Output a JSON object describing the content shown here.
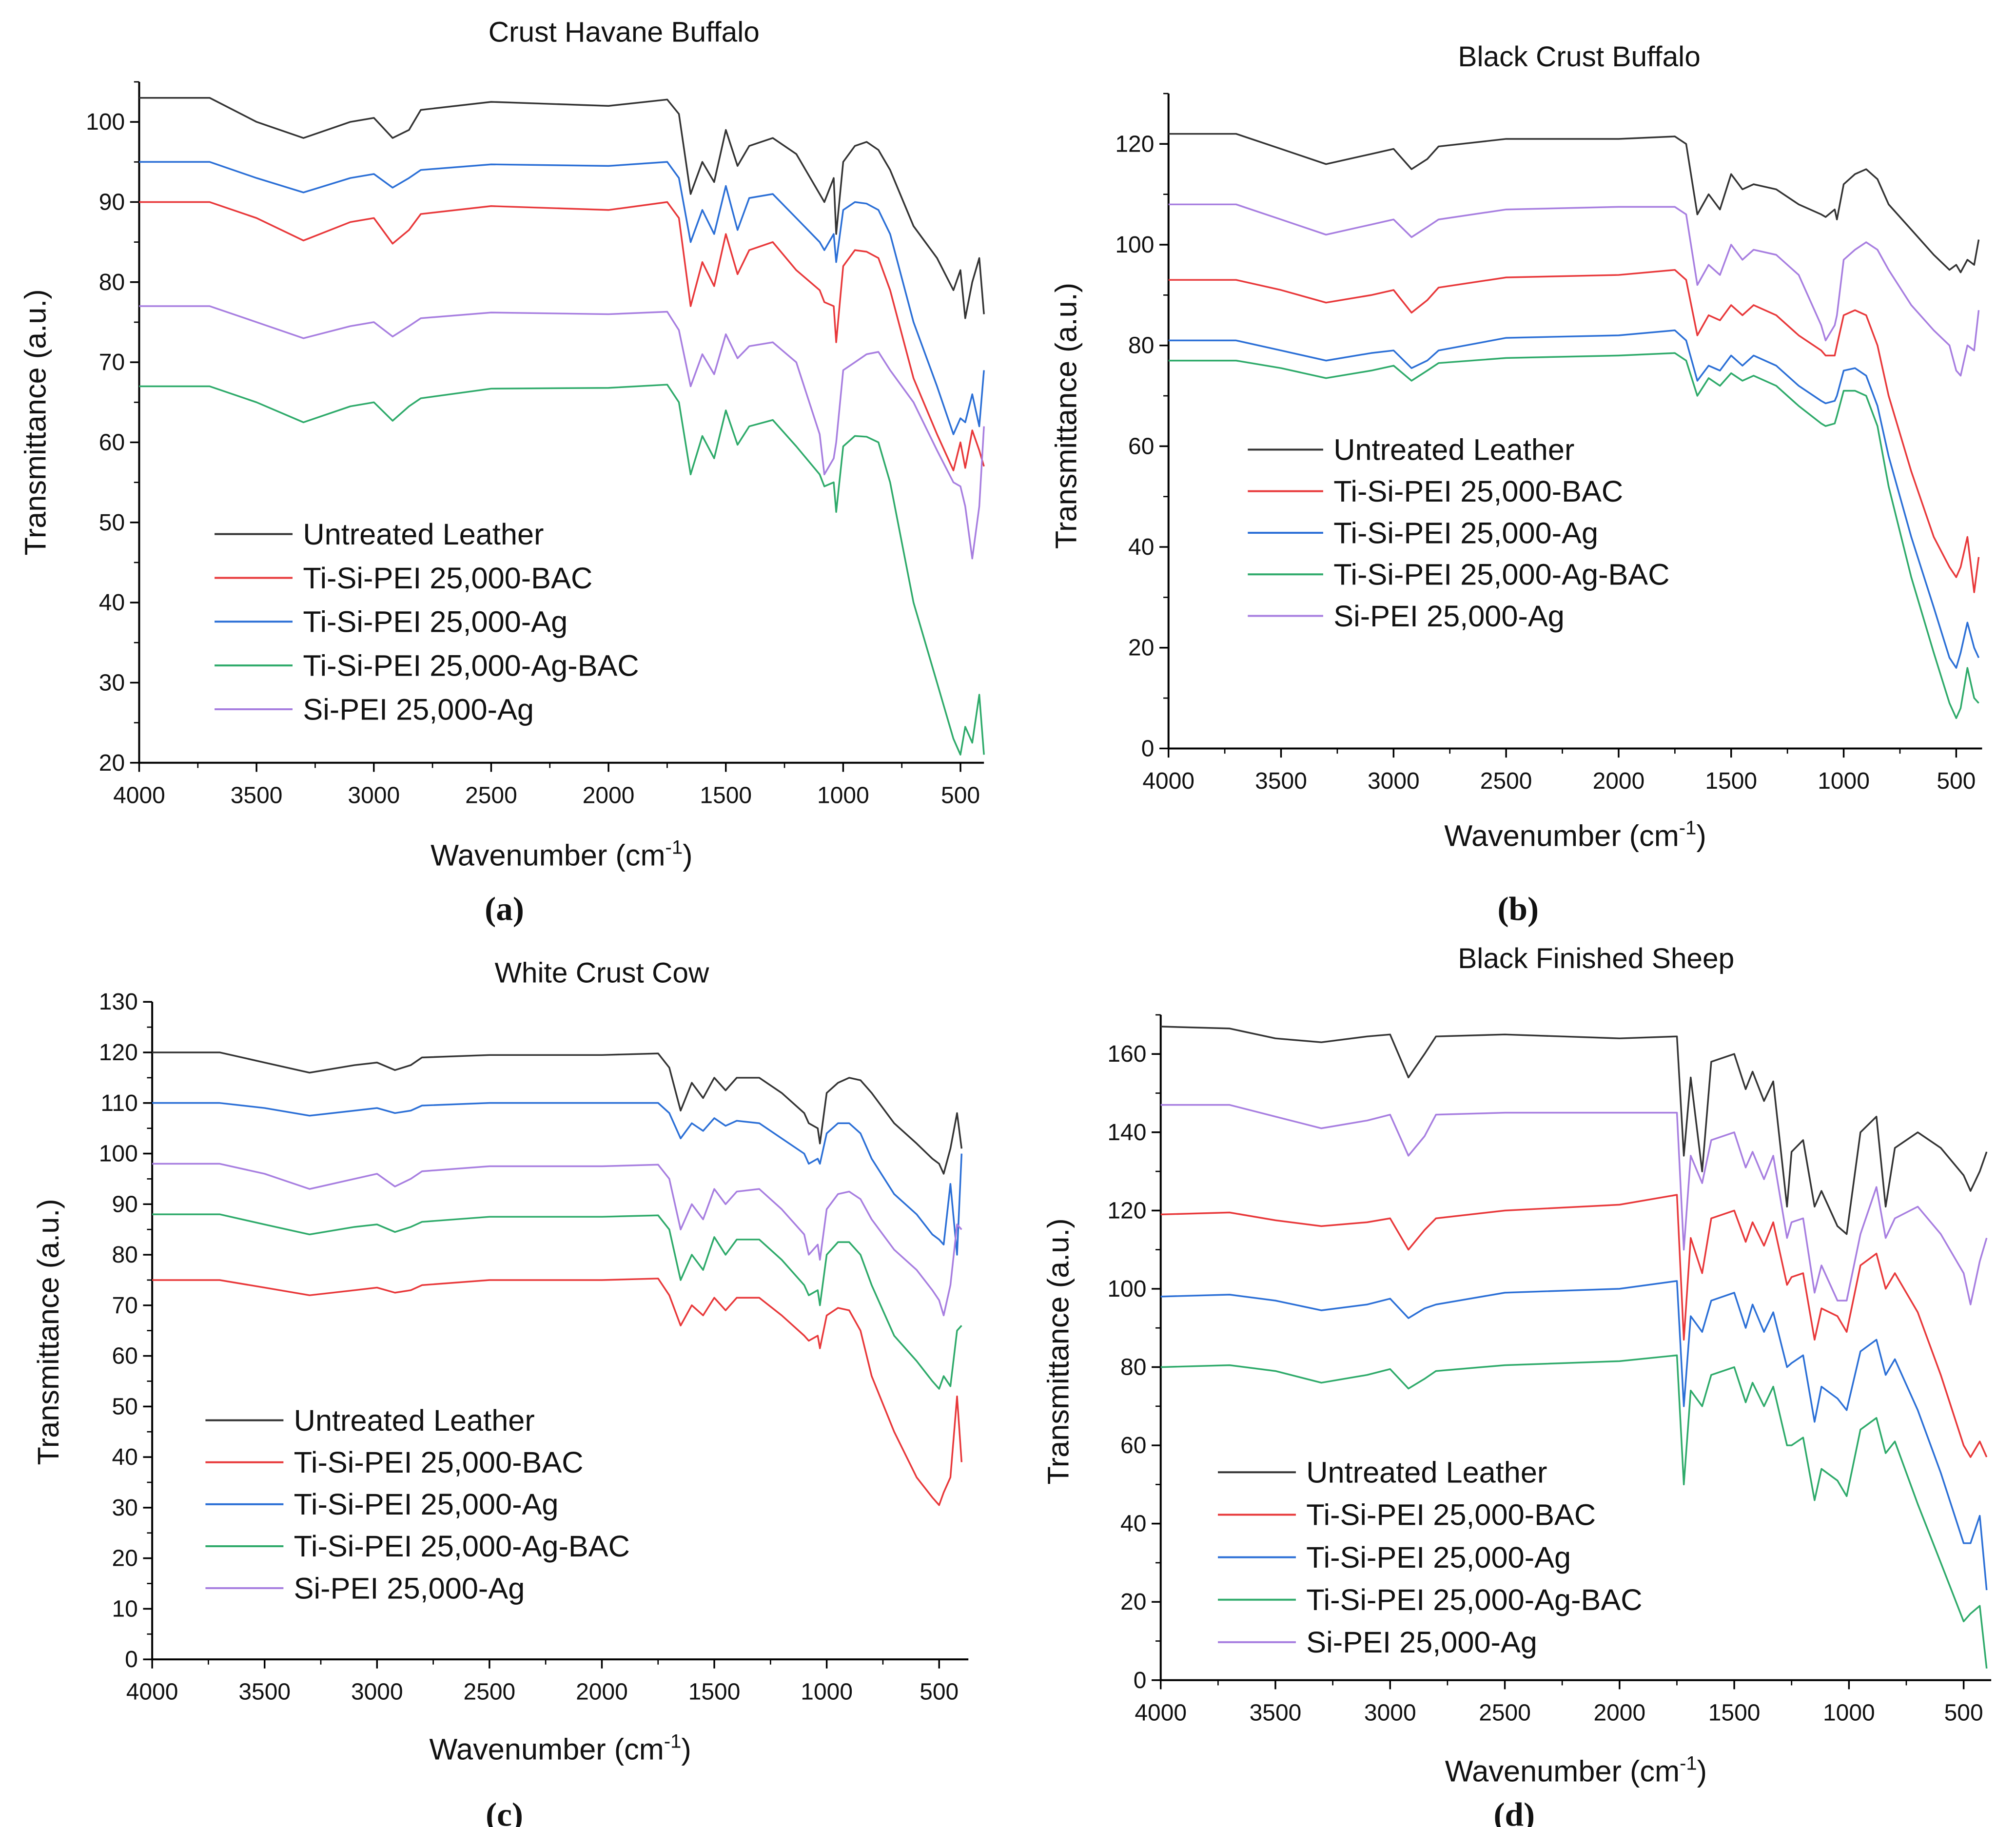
{
  "colors": {
    "Untreated Leather": "#333333",
    "Ti-Si-PEI 25,000-BAC": "#e8383a",
    "Ti-Si-PEI 25,000-Ag": "#2b6fd6",
    "Ti-Si-PEI 25,000-Ag-BAC": "#2eaa6a",
    "Si-PEI 25,000-Ag": "#a77ee0"
  },
  "chart_data": [
    {
      "type": "line",
      "panel": "(a)",
      "title": "Crust Havane Buffalo",
      "xlabel": "Wavenumber (cm-1)",
      "ylabel": "Transmittance (a.u.)",
      "xlim": [
        4000,
        400
      ],
      "ylim": [
        20,
        105
      ],
      "xticks": [
        4000,
        3500,
        3000,
        2500,
        2000,
        1500,
        1000,
        500
      ],
      "yticks": [
        20,
        30,
        40,
        50,
        60,
        70,
        80,
        90,
        100
      ],
      "legend": "lower-left",
      "grid": false,
      "x": [
        4000,
        3700,
        3500,
        3300,
        3100,
        3000,
        2920,
        2850,
        2800,
        2500,
        2000,
        1750,
        1700,
        1650,
        1600,
        1550,
        1500,
        1450,
        1400,
        1300,
        1200,
        1100,
        1080,
        1040,
        1030,
        1000,
        950,
        900,
        850,
        800,
        700,
        600,
        530,
        500,
        480,
        450,
        420,
        400
      ],
      "series": [
        {
          "name": "Untreated Leather",
          "values": [
            103,
            103,
            100,
            98,
            100,
            100.5,
            98,
            99,
            101.5,
            102.5,
            102,
            102.8,
            101,
            91,
            95,
            92.5,
            99,
            94.5,
            97,
            98,
            96,
            91,
            90,
            93,
            86,
            95,
            97,
            97.5,
            96.5,
            94,
            87,
            83,
            79,
            81.5,
            75.5,
            80,
            83,
            76
          ]
        },
        {
          "name": "Ti-Si-PEI 25,000-BAC",
          "values": [
            90,
            90,
            88,
            85.2,
            87.5,
            88,
            84.8,
            86.5,
            88.5,
            89.5,
            89,
            90,
            88,
            77,
            82.5,
            79.5,
            86,
            81,
            84,
            85,
            81.5,
            79,
            77.5,
            77,
            72.5,
            82,
            84,
            83.8,
            83,
            79,
            68,
            61,
            56.5,
            60,
            56.8,
            61.5,
            59,
            57
          ]
        },
        {
          "name": "Ti-Si-PEI 25,000-Ag",
          "values": [
            95,
            95,
            93,
            91.2,
            93,
            93.5,
            91.8,
            93,
            94,
            94.7,
            94.5,
            95,
            93,
            85,
            89,
            86,
            92,
            86.5,
            90.5,
            91,
            88,
            85,
            84,
            86,
            82.5,
            89,
            90,
            89.8,
            89,
            86,
            75,
            67,
            61,
            63,
            62.5,
            66,
            62,
            69
          ]
        },
        {
          "name": "Ti-Si-PEI 25,000-Ag-BAC",
          "values": [
            67,
            67,
            65,
            62.5,
            64.5,
            65,
            62.7,
            64.5,
            65.5,
            66.7,
            66.8,
            67.2,
            65,
            56,
            60.8,
            58,
            64,
            59.7,
            62,
            62.8,
            59.5,
            56,
            54.5,
            55,
            51.3,
            59.5,
            60.8,
            60.7,
            60,
            55,
            40,
            30,
            23,
            21,
            24.5,
            22.5,
            28.5,
            21
          ]
        },
        {
          "name": "Si-PEI 25,000-Ag",
          "values": [
            77,
            77,
            75,
            73,
            74.5,
            75,
            73.2,
            74.5,
            75.5,
            76.2,
            76,
            76.3,
            74,
            67,
            71,
            68.5,
            73.5,
            70.5,
            72,
            72.5,
            70,
            61,
            56,
            58,
            60,
            69,
            70,
            71,
            71.3,
            69,
            65,
            59,
            55,
            54.5,
            52,
            45.5,
            52,
            62
          ]
        }
      ]
    },
    {
      "type": "line",
      "panel": "(b)",
      "title": "Black Crust Buffalo",
      "xlabel": "Wavenumber (cm-1)",
      "ylabel": "Transmittance (a.u.)",
      "xlim": [
        4000,
        385
      ],
      "ylim": [
        0,
        130
      ],
      "xticks": [
        4000,
        3500,
        3000,
        2500,
        2000,
        1500,
        1000,
        500
      ],
      "yticks": [
        0,
        20,
        40,
        60,
        80,
        100,
        120
      ],
      "legend": "center-left",
      "grid": false,
      "x": [
        4000,
        3700,
        3500,
        3300,
        3100,
        3000,
        2920,
        2850,
        2800,
        2500,
        2000,
        1750,
        1700,
        1650,
        1600,
        1550,
        1500,
        1450,
        1400,
        1300,
        1200,
        1100,
        1080,
        1040,
        1030,
        1000,
        950,
        900,
        850,
        800,
        700,
        600,
        530,
        500,
        480,
        450,
        420,
        400
      ],
      "series": [
        {
          "name": "Untreated Leather",
          "values": [
            122,
            122,
            119,
            116,
            118,
            119,
            115,
            117,
            119.5,
            121,
            121,
            121.5,
            120,
            106,
            110,
            107,
            114,
            111,
            112,
            111,
            108,
            106,
            105.5,
            107,
            105,
            112,
            114,
            115,
            113,
            108,
            103,
            98,
            95,
            96,
            94.5,
            97,
            96,
            101
          ]
        },
        {
          "name": "Ti-Si-PEI 25,000-BAC",
          "values": [
            93,
            93,
            91,
            88.5,
            90,
            91,
            86.5,
            89,
            91.5,
            93.5,
            94,
            95,
            93,
            82,
            86,
            85,
            88,
            86,
            88,
            86,
            82,
            79,
            78,
            78,
            80,
            86,
            87,
            86,
            80,
            70,
            55,
            42,
            36,
            34,
            36,
            42,
            31,
            38
          ]
        },
        {
          "name": "Ti-Si-PEI 25,000-Ag",
          "values": [
            81,
            81,
            79,
            77,
            78.5,
            79,
            75.5,
            77,
            79,
            81.5,
            82,
            83,
            81,
            73,
            76,
            75,
            78,
            76,
            78,
            76,
            72,
            69,
            68.5,
            69,
            70,
            75,
            75.5,
            74,
            68,
            58,
            42,
            28,
            18,
            16,
            19,
            25,
            20,
            18
          ]
        },
        {
          "name": "Ti-Si-PEI 25,000-Ag-BAC",
          "values": [
            77,
            77,
            75.5,
            73.5,
            75,
            76,
            73,
            75,
            76.5,
            77.5,
            78,
            78.5,
            77,
            70,
            73.5,
            72,
            74.5,
            73,
            74,
            72,
            68,
            64.5,
            64,
            64.5,
            66,
            71,
            71,
            70,
            64,
            52,
            34,
            19,
            9,
            6,
            8,
            16,
            10,
            9
          ]
        },
        {
          "name": "Si-PEI 25,000-Ag",
          "values": [
            108,
            108,
            105,
            102,
            104,
            105,
            101.5,
            103.5,
            105,
            107,
            107.5,
            107.5,
            106,
            92,
            96,
            94,
            100,
            97,
            99,
            98,
            94,
            84,
            81,
            84,
            86,
            97,
            99,
            100.5,
            99,
            95,
            88,
            83,
            80,
            75,
            74,
            80,
            79,
            87
          ]
        }
      ]
    },
    {
      "type": "line",
      "panel": "(c)",
      "title": "White Crust Cow",
      "xlabel": "Wavenumber (cm-1)",
      "ylabel": "Transmittance (a.u.)",
      "xlim": [
        4000,
        370
      ],
      "ylim": [
        0,
        130
      ],
      "xticks": [
        4000,
        3500,
        3000,
        2500,
        2000,
        1500,
        1000,
        500
      ],
      "yticks": [
        0,
        10,
        20,
        30,
        40,
        50,
        60,
        70,
        80,
        90,
        100,
        110,
        120,
        130
      ],
      "legend": "lower-left",
      "grid": false,
      "x": [
        4000,
        3700,
        3500,
        3300,
        3100,
        3000,
        2920,
        2850,
        2800,
        2500,
        2000,
        1750,
        1700,
        1650,
        1600,
        1550,
        1500,
        1450,
        1400,
        1300,
        1200,
        1100,
        1080,
        1040,
        1030,
        1000,
        950,
        900,
        850,
        800,
        700,
        600,
        530,
        500,
        480,
        450,
        420,
        400
      ],
      "series": [
        {
          "name": "Untreated Leather",
          "values": [
            120,
            120,
            118,
            116,
            117.5,
            118,
            116.5,
            117.5,
            119,
            119.5,
            119.5,
            119.8,
            117,
            108.5,
            114,
            111,
            115,
            112.5,
            115,
            115,
            112,
            108,
            106,
            105,
            102,
            112,
            114,
            115,
            114.5,
            112,
            106,
            102,
            99,
            98,
            96,
            101,
            108,
            101
          ]
        },
        {
          "name": "Ti-Si-PEI 25,000-BAC",
          "values": [
            75,
            75,
            73.5,
            72,
            73,
            73.5,
            72.5,
            73,
            74,
            75,
            75,
            75.3,
            72,
            66,
            70,
            68,
            71.5,
            69,
            71.5,
            71.5,
            68,
            64,
            63,
            64,
            61.5,
            68,
            69.5,
            69,
            65,
            56,
            45,
            36,
            32,
            30.5,
            33,
            36,
            52,
            39
          ]
        },
        {
          "name": "Ti-Si-PEI 25,000-Ag",
          "values": [
            110,
            110,
            109,
            107.5,
            108.5,
            109,
            108,
            108.5,
            109.5,
            110,
            110,
            110,
            108,
            103,
            106,
            104.5,
            107,
            105.5,
            106.5,
            106,
            103,
            100,
            98,
            99,
            98,
            104,
            106,
            106,
            104,
            99,
            92,
            88,
            84,
            83,
            82,
            94,
            80,
            100
          ]
        },
        {
          "name": "Ti-Si-PEI 25,000-Ag-BAC",
          "values": [
            88,
            88,
            86,
            84,
            85.5,
            86,
            84.5,
            85.5,
            86.5,
            87.5,
            87.5,
            87.8,
            85,
            75,
            80,
            77,
            83.5,
            80,
            83,
            83,
            79,
            74,
            72,
            73,
            70,
            80,
            82.5,
            82.5,
            80,
            74,
            64,
            59,
            55,
            53.5,
            56,
            54,
            65,
            66
          ]
        },
        {
          "name": "Si-PEI 25,000-Ag",
          "values": [
            98,
            98,
            96,
            93,
            95,
            96,
            93.5,
            95,
            96.5,
            97.5,
            97.5,
            97.8,
            95,
            85,
            90,
            87,
            93,
            90,
            92.5,
            93,
            89,
            84,
            80,
            82,
            79,
            89,
            92,
            92.5,
            91,
            87,
            81,
            77,
            73,
            71,
            68,
            74,
            86,
            85
          ]
        }
      ]
    },
    {
      "type": "line",
      "panel": "(d)",
      "title": "Black Finished Sheep",
      "xlabel": "Wavenumber (cm-1)",
      "ylabel": "Transmittance (a.u.)",
      "xlim": [
        4000,
        380
      ],
      "ylim": [
        0,
        170
      ],
      "xticks": [
        4000,
        3500,
        3000,
        2500,
        2000,
        1500,
        1000,
        500
      ],
      "yticks": [
        0,
        20,
        40,
        60,
        80,
        100,
        120,
        140,
        160
      ],
      "legend": "lower-left",
      "grid": false,
      "x": [
        4000,
        3700,
        3500,
        3300,
        3100,
        3000,
        2920,
        2850,
        2800,
        2500,
        2000,
        1750,
        1720,
        1690,
        1640,
        1600,
        1500,
        1450,
        1420,
        1370,
        1330,
        1270,
        1250,
        1200,
        1150,
        1120,
        1050,
        1010,
        950,
        880,
        840,
        800,
        700,
        600,
        500,
        470,
        430,
        400
      ],
      "series": [
        {
          "name": "Untreated Leather",
          "values": [
            167,
            166.5,
            164,
            163,
            164.5,
            165,
            154,
            160,
            164.5,
            165,
            164,
            164.5,
            134,
            154,
            130,
            158,
            160,
            151,
            155.5,
            148,
            153,
            121,
            135,
            138,
            121,
            125,
            116,
            114,
            140,
            144,
            121,
            136,
            140,
            136,
            129,
            125,
            130,
            135
          ]
        },
        {
          "name": "Ti-Si-PEI 25,000-BAC",
          "values": [
            119,
            119.5,
            117.5,
            116,
            117,
            118,
            110,
            115,
            118,
            120,
            121.5,
            124,
            87,
            113,
            104,
            118,
            120,
            112,
            117,
            111,
            117,
            101,
            103,
            104,
            87,
            95,
            93,
            89,
            106,
            109,
            100,
            104,
            94,
            78,
            60,
            57,
            61,
            57
          ]
        },
        {
          "name": "Ti-Si-PEI 25,000-Ag",
          "values": [
            98,
            98.5,
            97,
            94.5,
            96,
            97.5,
            92.5,
            95,
            96,
            99,
            100,
            102,
            70,
            93,
            89,
            97,
            99,
            90,
            96,
            89,
            94,
            80,
            81,
            83,
            66,
            75,
            72,
            69,
            84,
            87,
            78,
            82,
            69,
            53,
            35,
            35,
            42,
            23
          ]
        },
        {
          "name": "Ti-Si-PEI 25,000-Ag-BAC",
          "values": [
            80,
            80.5,
            79,
            76,
            78,
            79.5,
            74.5,
            77,
            79,
            80.5,
            81.5,
            83,
            50,
            74,
            70,
            78,
            80,
            71,
            76,
            70,
            75,
            60,
            60,
            62,
            46,
            54,
            51,
            47,
            64,
            67,
            58,
            61,
            45,
            30,
            15,
            17,
            19,
            3
          ]
        },
        {
          "name": "Si-PEI 25,000-Ag",
          "values": [
            147,
            147,
            144,
            141,
            143,
            144.5,
            134,
            139,
            144.5,
            145,
            145,
            145,
            110,
            134,
            127,
            138,
            140,
            131,
            135,
            128,
            134,
            113,
            117,
            118,
            99,
            106,
            97,
            97,
            114,
            126,
            113,
            118,
            121,
            114,
            104,
            96,
            107,
            113
          ]
        }
      ]
    }
  ]
}
